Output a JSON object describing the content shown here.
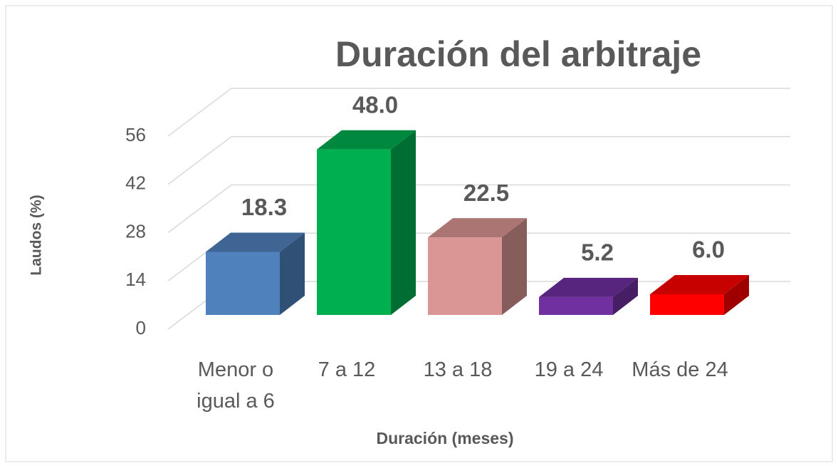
{
  "chart_data": {
    "type": "bar3d",
    "title": "Duración del arbitraje",
    "x_label": "Duración (meses)",
    "y_label": "Laudos (%)",
    "categories": [
      "Menor o igual a 6",
      "7 a 12",
      "13 a 18",
      "19 a 24",
      "Más de 24"
    ],
    "values": [
      18.3,
      48.0,
      22.5,
      5.2,
      6.0
    ],
    "value_labels": [
      "18.3",
      "48.0",
      "22.5",
      "5.2",
      "6.0"
    ],
    "colors": [
      "#4f81bd",
      "#00b050",
      "#da9694",
      "#7030a0",
      "#ff0000"
    ],
    "ylim": [
      0,
      56
    ],
    "yticks": [
      0,
      14,
      28,
      42,
      56
    ],
    "grid": true
  }
}
